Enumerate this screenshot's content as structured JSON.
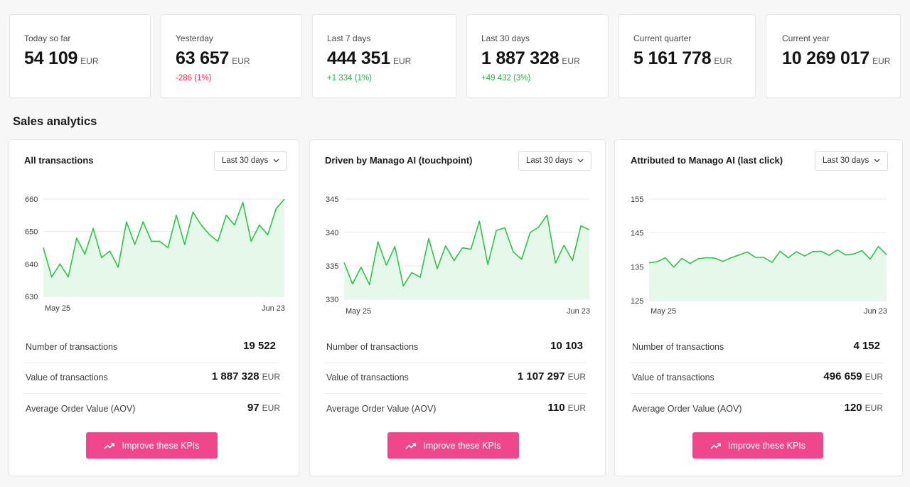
{
  "kpis": [
    {
      "label": "Today so far",
      "value": "54 109",
      "unit": "EUR",
      "delta": "",
      "delta_type": ""
    },
    {
      "label": "Yesterday",
      "value": "63 657",
      "unit": "EUR",
      "delta": "-286 (1%)",
      "delta_type": "neg"
    },
    {
      "label": "Last 7 days",
      "value": "444 351",
      "unit": "EUR",
      "delta": "+1 334 (1%)",
      "delta_type": "pos"
    },
    {
      "label": "Last 30 days",
      "value": "1 887 328",
      "unit": "EUR",
      "delta": "+49 432 (3%)",
      "delta_type": "pos"
    },
    {
      "label": "Current quarter",
      "value": "5 161 778",
      "unit": "EUR",
      "delta": "",
      "delta_type": ""
    },
    {
      "label": "Current year",
      "value": "10 269 017",
      "unit": "EUR",
      "delta": "",
      "delta_type": ""
    }
  ],
  "section_title": "Sales analytics",
  "colors": {
    "line": "#2fc24b",
    "area": "#e6f8e9",
    "accent": "#f0468c",
    "negative": "#e8344e",
    "positive": "#2ab04a"
  },
  "panels": [
    {
      "title": "All transactions",
      "period": "Last 30 days",
      "chart_data": {
        "type": "area",
        "x_start_label": "May 25",
        "x_end_label": "Jun 23",
        "y_ticks": [
          630,
          640,
          650,
          660
        ],
        "ylim": [
          630,
          660
        ],
        "values": [
          645,
          636,
          640,
          636,
          648,
          643,
          651,
          642,
          644,
          639,
          653,
          646,
          653,
          647,
          647,
          645,
          655,
          646,
          656,
          652,
          649,
          647,
          655,
          652,
          659,
          647,
          652,
          649,
          657,
          660
        ]
      },
      "stats": [
        {
          "label": "Number of transactions",
          "value": "19 522",
          "unit": ""
        },
        {
          "label": "Value of transactions",
          "value": "1 887 328",
          "unit": "EUR"
        },
        {
          "label": "Average Order Value (AOV)",
          "value": "97",
          "unit": "EUR"
        }
      ],
      "button": "Improve these KPIs"
    },
    {
      "title": "Driven by Manago AI (touchpoint)",
      "period": "Last 30 days",
      "chart_data": {
        "type": "area",
        "x_start_label": "May 25",
        "x_end_label": "Jun 23",
        "y_ticks": [
          330,
          335,
          340,
          345
        ],
        "ylim": [
          330,
          345
        ],
        "values": [
          335.5,
          332.3,
          334.8,
          332.2,
          338.6,
          335.1,
          337.9,
          332,
          334,
          333.3,
          339.1,
          334.6,
          338,
          335.8,
          337.7,
          337.5,
          341.7,
          335.2,
          340.3,
          340.7,
          337.1,
          336,
          340,
          340.8,
          342.6,
          335.4,
          338.1,
          335.8,
          341,
          340.4
        ]
      },
      "stats": [
        {
          "label": "Number of transactions",
          "value": "10 103",
          "unit": ""
        },
        {
          "label": "Value of transactions",
          "value": "1 107 297",
          "unit": "EUR"
        },
        {
          "label": "Average Order Value (AOV)",
          "value": "110",
          "unit": "EUR"
        }
      ],
      "button": "Improve these KPIs"
    },
    {
      "title": "Attributed to Manago AI (last click)",
      "period": "Last 30 days",
      "chart_data": {
        "type": "area",
        "x_start_label": "May 25",
        "x_end_label": "Jun 23",
        "y_ticks": [
          125,
          135,
          145,
          155
        ],
        "ylim": [
          125,
          155
        ],
        "values": [
          136.2,
          136.5,
          137.7,
          134.9,
          137.5,
          136,
          137.4,
          137.7,
          137.6,
          136.6,
          137.7,
          138.5,
          139.4,
          137.8,
          137.8,
          136.3,
          139.6,
          137.7,
          139.5,
          138.2,
          139.5,
          139.6,
          138.4,
          140,
          138.5,
          138.8,
          139.8,
          137.3,
          141,
          138.6
        ]
      },
      "stats": [
        {
          "label": "Number of transactions",
          "value": "4 152",
          "unit": ""
        },
        {
          "label": "Value of transactions",
          "value": "496 659",
          "unit": "EUR"
        },
        {
          "label": "Average Order Value (AOV)",
          "value": "120",
          "unit": "EUR"
        }
      ],
      "button": "Improve these KPIs"
    }
  ]
}
